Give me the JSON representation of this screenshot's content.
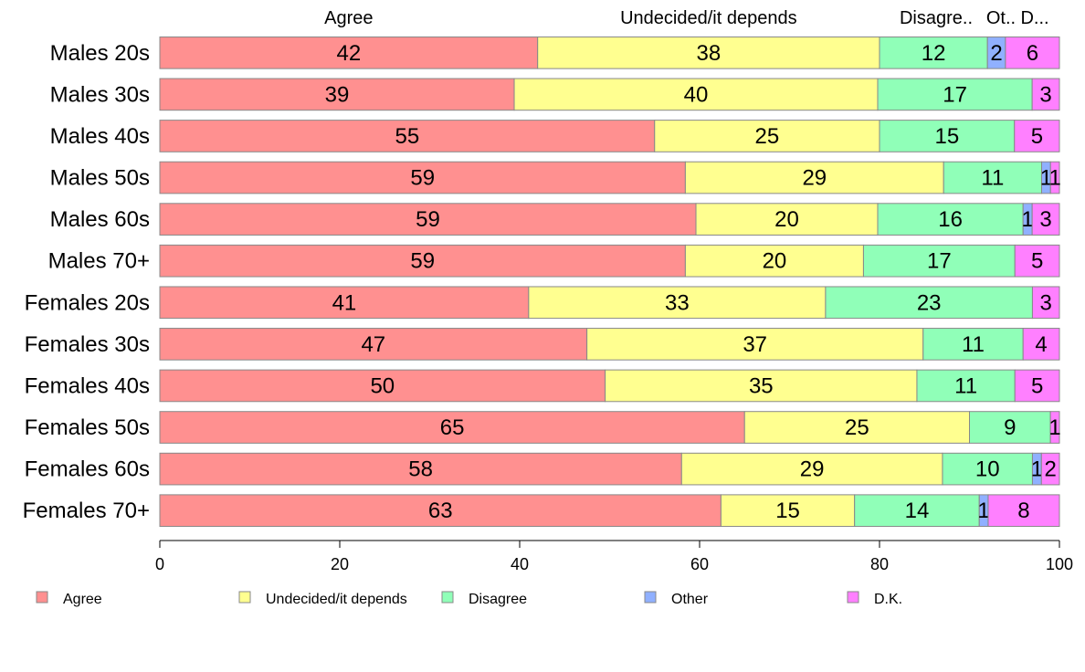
{
  "chart_data": {
    "type": "bar",
    "orientation": "horizontal",
    "stacked": true,
    "categories": [
      "Males 20s",
      "Males 30s",
      "Males 40s",
      "Males 50s",
      "Males 60s",
      "Males 70+",
      "Females 20s",
      "Females 30s",
      "Females 40s",
      "Females 50s",
      "Females 60s",
      "Females 70+"
    ],
    "series": [
      {
        "name": "Agree",
        "color": "#ff9090",
        "values": [
          42,
          39,
          55,
          59,
          59,
          59,
          41,
          47,
          50,
          65,
          58,
          63
        ]
      },
      {
        "name": "Undecided/it depends",
        "color": "#ffff90",
        "values": [
          38,
          40,
          25,
          29,
          20,
          20,
          33,
          37,
          35,
          25,
          29,
          15
        ]
      },
      {
        "name": "Disagree",
        "color": "#90ffb8",
        "values": [
          12,
          17,
          15,
          11,
          16,
          17,
          23,
          11,
          11,
          9,
          10,
          14
        ]
      },
      {
        "name": "Other",
        "color": "#90b0ff",
        "values": [
          2,
          0,
          0,
          1,
          1,
          0,
          0,
          0,
          0,
          0,
          1,
          1
        ]
      },
      {
        "name": "D.K.",
        "color": "#ff80ff",
        "values": [
          6,
          3,
          5,
          1,
          3,
          5,
          3,
          4,
          5,
          1,
          2,
          8
        ]
      }
    ],
    "column_headers": [
      "Agree",
      "Undecided/it depends",
      "Disagre..",
      "Ot..",
      "D..."
    ],
    "xlim": [
      0,
      100
    ],
    "xticks": [
      "0",
      "20",
      "40",
      "60",
      "80",
      "100"
    ],
    "legend_position": "bottom",
    "grid": false
  }
}
